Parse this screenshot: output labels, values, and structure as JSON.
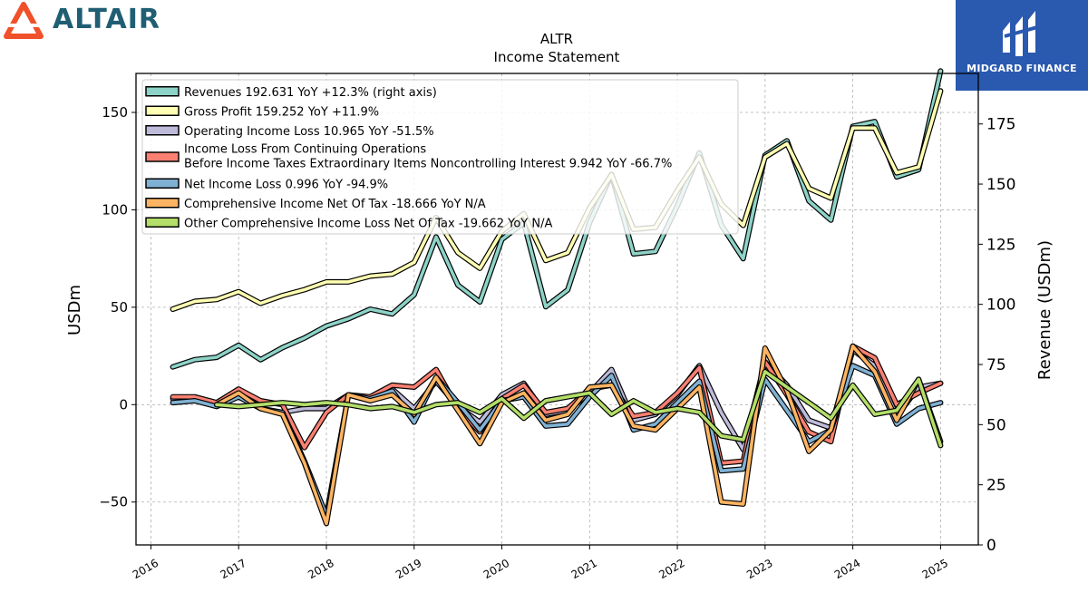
{
  "branding": {
    "left_logo_text": "ALTAIR",
    "right_logo_text": "MIDGARD FINANCE"
  },
  "chart_data": {
    "type": "line",
    "title": "ALTR",
    "subtitle": "Income Statement",
    "ylabel": "USDm",
    "y2label": "Revenue (USDm)",
    "ylim": [
      -72,
      170
    ],
    "y2lim": [
      0,
      196
    ],
    "yticks": [
      -50,
      0,
      50,
      100,
      150
    ],
    "y2ticks": [
      0,
      25,
      50,
      75,
      100,
      125,
      150,
      175
    ],
    "xlim": [
      2015.83,
      2025.43
    ],
    "xticks": [
      "2016",
      "2017",
      "2018",
      "2019",
      "2020",
      "2021",
      "2022",
      "2023",
      "2024",
      "2025"
    ],
    "grid": true,
    "legend_position": "upper-left",
    "x": [
      2016.25,
      2016.5,
      2016.75,
      2017.0,
      2017.25,
      2017.5,
      2017.75,
      2018.0,
      2018.25,
      2018.5,
      2018.75,
      2019.0,
      2019.25,
      2019.5,
      2019.75,
      2020.0,
      2020.25,
      2020.5,
      2020.75,
      2021.0,
      2021.25,
      2021.5,
      2021.75,
      2022.0,
      2022.25,
      2022.5,
      2022.75,
      2023.0,
      2023.25,
      2023.5,
      2023.75,
      2024.0,
      2024.25,
      2024.5,
      2024.75,
      2025.0
    ],
    "series": [
      {
        "name": "Revenues",
        "legend": "Revenues  192.631 YoY +12.3% (right axis)",
        "axis": "right",
        "color": "#8dd3c7",
        "values": [
          74,
          77,
          78,
          83,
          77,
          82,
          86,
          91,
          94,
          98,
          96,
          104,
          128,
          108,
          101,
          127,
          134,
          99,
          106,
          134,
          154,
          121,
          122,
          141,
          163,
          133,
          119,
          162,
          168,
          143,
          135,
          174,
          176,
          153,
          156,
          197
        ]
      },
      {
        "name": "Gross Profit",
        "legend": "Gross Profit  159.252 YoY +11.9%",
        "axis": "left",
        "color": "#ffffb3",
        "values": [
          49,
          53,
          54,
          58,
          52,
          56,
          59,
          63,
          63,
          66,
          67,
          73,
          96,
          78,
          70,
          89,
          98,
          74,
          78,
          101,
          118,
          90,
          91,
          110,
          127,
          103,
          92,
          127,
          134,
          111,
          106,
          142,
          142,
          119,
          122,
          161
        ]
      },
      {
        "name": "Operating Income Loss",
        "legend": "Operating Income Loss  10.965 YoY -51.5%",
        "axis": "left",
        "color": "#bebada",
        "values": [
          3,
          3,
          0,
          7,
          -2,
          -4,
          -2,
          -2,
          5,
          2,
          8,
          -2,
          12,
          -1,
          -9,
          5,
          11,
          -5,
          -3,
          6,
          18,
          -8,
          -5,
          5,
          20,
          -4,
          -23,
          22,
          10,
          -8,
          -12,
          28,
          20,
          -6,
          9,
          11
        ]
      },
      {
        "name": "Income Loss From Continuing Operations Before Income Taxes Extraordinary Items Noncontrolling Interest",
        "legend": "Income Loss From Continuing Operations|Before Income Taxes Extraordinary Items Noncontrolling Interest  9.942 YoY -66.7%",
        "axis": "left",
        "color": "#fb8072",
        "values": [
          4,
          4,
          1,
          8,
          2,
          0,
          -22,
          -4,
          5,
          4,
          10,
          9,
          18,
          -2,
          -14,
          3,
          10,
          -4,
          -2,
          8,
          10,
          -6,
          -4,
          6,
          19,
          -30,
          -29,
          22,
          5,
          -14,
          -19,
          30,
          24,
          0,
          6,
          11
        ]
      },
      {
        "name": "Net Income Loss",
        "legend": "Net Income Loss  0.996 YoY -94.9%",
        "axis": "left",
        "color": "#80b1d3",
        "values": [
          1,
          2,
          -1,
          4,
          -2,
          -4,
          -29,
          -57,
          5,
          3,
          7,
          -9,
          14,
          1,
          -13,
          2,
          4,
          -11,
          -10,
          4,
          15,
          -13,
          -10,
          1,
          12,
          -34,
          -33,
          13,
          -3,
          -19,
          -13,
          20,
          15,
          -10,
          -2,
          1
        ]
      },
      {
        "name": "Comprehensive Income Net Of Tax",
        "legend": "Comprehensive Income Net Of Tax  -18.666 YoY N/A",
        "axis": "left",
        "color": "#fdb462",
        "values": [
          null,
          null,
          0,
          6,
          -2,
          -5,
          -30,
          -61,
          5,
          2,
          5,
          -5,
          14,
          -3,
          -20,
          1,
          6,
          -8,
          -5,
          9,
          10,
          -11,
          -13,
          -2,
          9,
          -50,
          -51,
          29,
          7,
          -24,
          -13,
          30,
          17,
          -8,
          13,
          -19
        ]
      },
      {
        "name": "Other Comprehensive Income Loss Net Of Tax",
        "legend": "Other Comprehensive Income Loss Net Of Tax  -19.662 YoY N/A",
        "axis": "left",
        "color": "#b3de69",
        "values": [
          null,
          null,
          0,
          -1,
          0,
          1,
          0,
          1,
          0,
          -2,
          -1,
          -4,
          0,
          1,
          -4,
          3,
          -7,
          2,
          4,
          6,
          -5,
          2,
          -4,
          -2,
          -4,
          -16,
          -18,
          17,
          9,
          1,
          -7,
          10,
          -5,
          -3,
          13,
          -21
        ]
      }
    ]
  }
}
